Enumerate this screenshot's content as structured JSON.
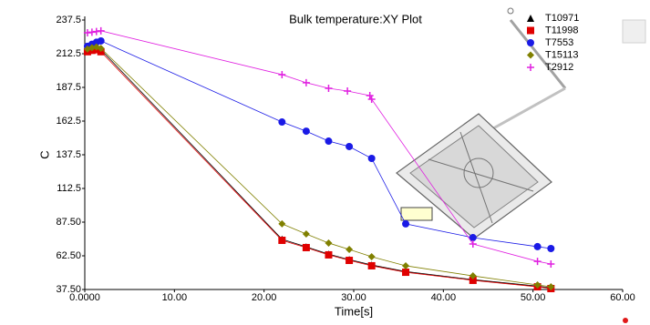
{
  "chart_data": {
    "type": "line",
    "title": "Bulk temperature:XY Plot",
    "x_label": "Time[s]",
    "y_label": "C",
    "xlim": [
      0,
      60
    ],
    "xticks": [
      {
        "value": 0,
        "label": "0.0000"
      },
      {
        "value": 10,
        "label": "10.00"
      },
      {
        "value": 20,
        "label": "20.00"
      },
      {
        "value": 30,
        "label": "30.00"
      },
      {
        "value": 40,
        "label": "40.00"
      },
      {
        "value": 50,
        "label": "50.00"
      },
      {
        "value": 60,
        "label": "60.00"
      }
    ],
    "ylim": [
      37.5,
      237.5
    ],
    "yticks": [
      {
        "value": 37.5,
        "label": "37.50"
      },
      {
        "value": 62.5,
        "label": "62.50"
      },
      {
        "value": 87.5,
        "label": "87.50"
      },
      112.5,
      137.5,
      162.5,
      187.5,
      212.5,
      237.5
    ],
    "grid": false,
    "legend": "top-right",
    "series": [
      {
        "name": "T10971",
        "color": "#000000",
        "marker": "triangle",
        "x": [
          0.3,
          0.8,
          1.3,
          1.8,
          22,
          24.7,
          27.2,
          29.5,
          32,
          35.8,
          43.3,
          50.5,
          52
        ],
        "values": [
          215,
          216,
          216.5,
          215.5,
          74.8,
          69.2,
          63.8,
          59.7,
          55.7,
          50.8,
          44.8,
          40,
          38.7
        ]
      },
      {
        "name": "T11998",
        "color": "#e00000",
        "marker": "square",
        "x": [
          0.3,
          0.8,
          1.3,
          1.8,
          22,
          24.7,
          27.2,
          29.5,
          32,
          35.8,
          43.3,
          50.5,
          52
        ],
        "values": [
          214,
          215,
          215.5,
          214,
          74,
          68.6,
          63.2,
          59.1,
          55.1,
          50.3,
          44.3,
          39.5,
          38.2
        ]
      },
      {
        "name": "T7553",
        "color": "#1a1ae6",
        "marker": "circle",
        "x": [
          0.3,
          0.8,
          1.3,
          1.8,
          22,
          24.7,
          27.2,
          29.5,
          32,
          35.8,
          43.3,
          50.5,
          52
        ],
        "values": [
          218,
          219.5,
          221,
          222,
          161.8,
          155,
          147.6,
          143.6,
          134.8,
          86.2,
          76,
          69.3,
          67.9
        ]
      },
      {
        "name": "T15113",
        "color": "#808000",
        "marker": "diamond",
        "x": [
          0.3,
          0.8,
          1.3,
          1.8,
          22,
          24.7,
          27.2,
          29.5,
          32,
          35.8,
          43.3,
          50.5,
          52
        ],
        "values": [
          216,
          217,
          217.5,
          216.5,
          86.2,
          78.7,
          72,
          67.2,
          61.8,
          55.1,
          47.6,
          40.9,
          39.5
        ]
      },
      {
        "name": "T2912",
        "color": "#e020e0",
        "marker": "plus",
        "x": [
          0.3,
          0.8,
          1.3,
          1.8,
          22,
          24.7,
          27.2,
          29.3,
          31.8,
          32,
          43.3,
          50.5,
          52
        ],
        "values": [
          228,
          228.5,
          229,
          229.5,
          197,
          191,
          186.8,
          184.8,
          181.4,
          178.7,
          71.3,
          58.4,
          56.4
        ]
      }
    ]
  }
}
